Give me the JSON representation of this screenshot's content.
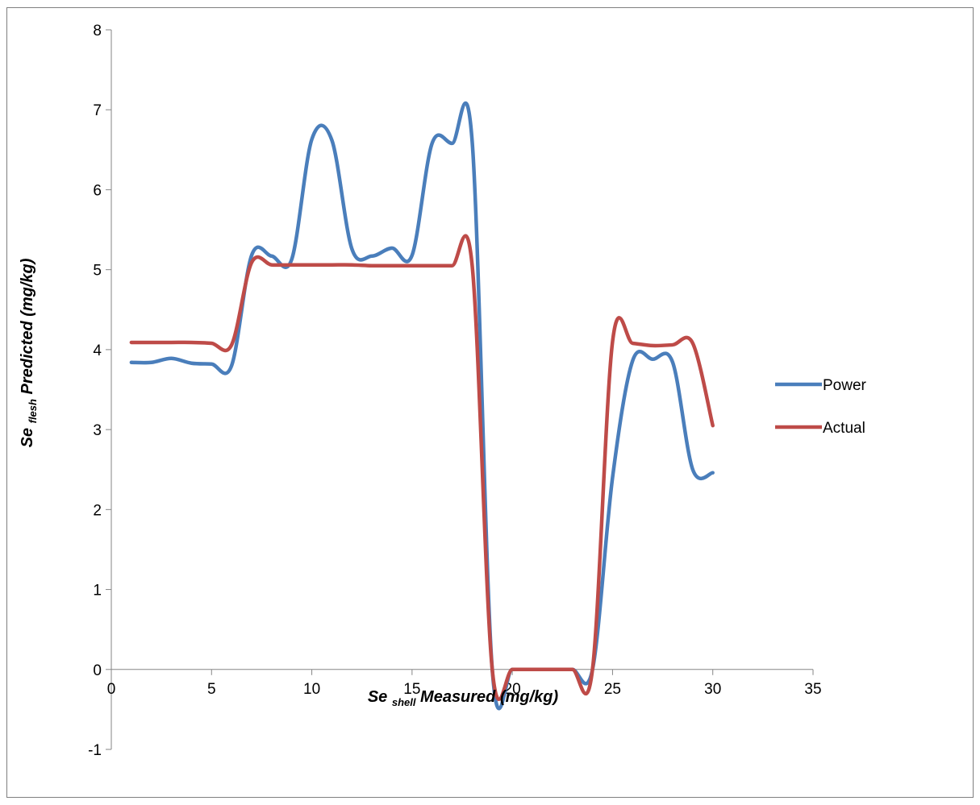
{
  "chart_data": {
    "type": "line",
    "xlabel": {
      "prefix": "Se ",
      "subscript": "shell",
      "suffix": "Measured (mg/kg)"
    },
    "ylabel": {
      "prefix": "Se ",
      "subscript": "flesh",
      "suffix": " Predicted (mg/kg)"
    },
    "xlim": [
      0,
      35
    ],
    "ylim": [
      -1,
      8
    ],
    "x_ticks": [
      "0",
      "5",
      "10",
      "15",
      "20",
      "25",
      "30",
      "35"
    ],
    "y_ticks": [
      "-1",
      "0",
      "1",
      "2",
      "3",
      "4",
      "5",
      "6",
      "7",
      "8"
    ],
    "grid": false,
    "legend_position": "right",
    "series": [
      {
        "name": "Power",
        "color": "#4a7ebb",
        "x": [
          1,
          2,
          3,
          4,
          5,
          6,
          7,
          8,
          9,
          10,
          11,
          12,
          13,
          14,
          15,
          16,
          17,
          18,
          19,
          20,
          21,
          22,
          23,
          24,
          25,
          26,
          27,
          28,
          29,
          30
        ],
        "y": [
          3.84,
          3.84,
          3.89,
          3.83,
          3.82,
          3.8,
          5.18,
          5.17,
          5.13,
          6.63,
          6.62,
          5.26,
          5.17,
          5.27,
          5.18,
          6.58,
          6.58,
          6.6,
          0.0,
          0.0,
          0.0,
          0.0,
          0.0,
          0.0,
          2.4,
          3.86,
          3.88,
          3.84,
          2.5,
          2.46
        ]
      },
      {
        "name": "Actual",
        "color": "#be4b48",
        "x": [
          1,
          2,
          3,
          4,
          5,
          6,
          7,
          8,
          9,
          10,
          11,
          12,
          13,
          14,
          15,
          16,
          17,
          18,
          19,
          20,
          21,
          22,
          23,
          24,
          25,
          26,
          27,
          28,
          29,
          30
        ],
        "y": [
          4.09,
          4.09,
          4.09,
          4.09,
          4.08,
          4.06,
          5.09,
          5.06,
          5.06,
          5.06,
          5.06,
          5.06,
          5.05,
          5.05,
          5.05,
          5.05,
          5.05,
          5.05,
          0.0,
          0.0,
          0.0,
          0.0,
          0.0,
          0.0,
          4.1,
          4.08,
          4.05,
          4.06,
          4.08,
          3.05
        ]
      }
    ]
  }
}
